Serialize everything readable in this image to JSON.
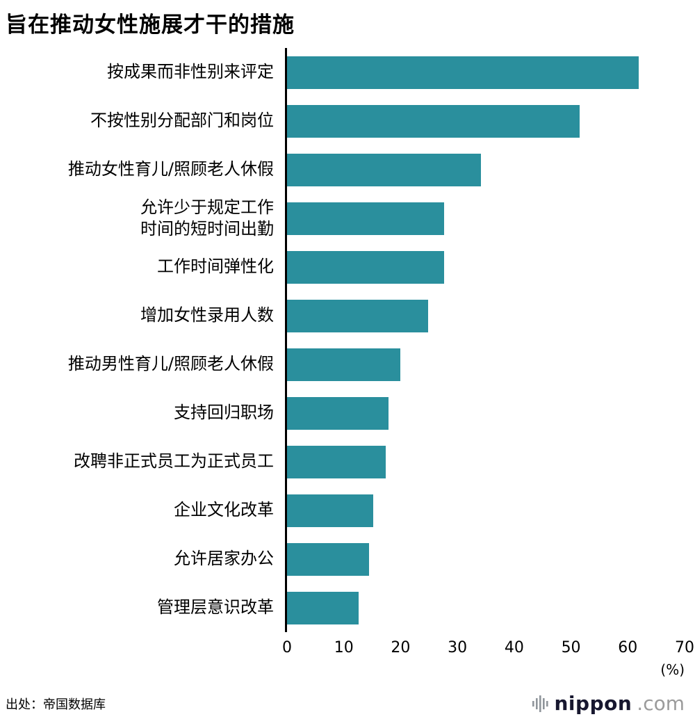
{
  "header": {
    "title": "旨在推动女性施展才干的措施"
  },
  "chart_data": {
    "type": "bar",
    "orientation": "horizontal",
    "title": "旨在推动女性施展才干的措施",
    "categories": [
      "按成果而非性别来评定",
      "不按性别分配部门和岗位",
      "推动女性育儿/照顾老人休假",
      "允许少于规定工作\n时间的短时间出勤",
      "工作时间弹性化",
      "增加女性录用人数",
      "推动男性育儿/照顾老人休假",
      "支持回归职场",
      "改聘非正式员工为正式员工",
      "企业文化改革",
      "允许居家办公",
      "管理层意识改革"
    ],
    "values": [
      61.9,
      51.5,
      34.1,
      27.7,
      27.6,
      24.9,
      19.9,
      17.9,
      17.4,
      15.2,
      14.4,
      12.6
    ],
    "xlim": [
      0,
      70
    ],
    "x_ticks": [
      0,
      10,
      20,
      30,
      40,
      50,
      60,
      70
    ],
    "x_unit_label": "(%)",
    "grid": false,
    "legend": false,
    "bar_color": "#2A8F9D",
    "axis_color": "#000000"
  },
  "footer": {
    "source": "出处：帝国数据库",
    "logo": {
      "icon": "nippon-soundbars-icon",
      "name": "nippon",
      "tld": ".com",
      "name_color": "#17172f",
      "tld_color": "#9b9b9b",
      "icon_color": "#8f959b"
    }
  }
}
